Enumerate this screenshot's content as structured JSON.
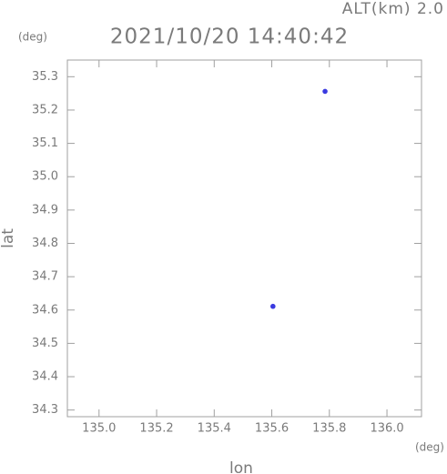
{
  "chart_data": {
    "type": "scatter",
    "title": "2021/10/20 14:40:42",
    "annotation": "ALT(km) 2.0",
    "y_unit": "(deg)",
    "x_unit": "(deg)",
    "xlabel": "lon",
    "ylabel": "lat",
    "series": [
      {
        "color": "#3a3ae0",
        "x": [
          135.785,
          135.604
        ],
        "values": [
          35.256,
          34.611
        ]
      }
    ],
    "xlim": [
      134.89,
      136.12
    ],
    "ylim": [
      34.28,
      35.35
    ],
    "xticks": [
      {
        "value": 135,
        "label": "135.0"
      },
      135.2,
      135.4,
      135.6,
      135.8,
      {
        "value": 136,
        "label": "136.0"
      }
    ],
    "yticks": [
      35.3,
      35.2,
      35.1,
      {
        "value": 35,
        "label": "35.0"
      },
      34.9,
      34.8,
      34.7,
      34.6,
      34.5,
      34.4,
      34.3
    ]
  }
}
